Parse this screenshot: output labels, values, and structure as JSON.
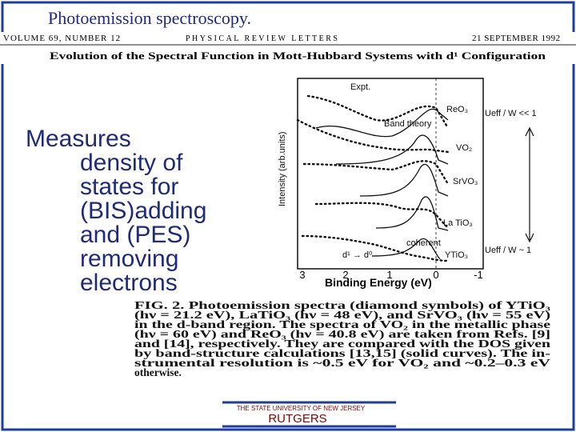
{
  "slide": {
    "title": "Photoemission spectroscopy.",
    "header": {
      "left": "VOLUME 69, NUMBER 12",
      "center": "PHYSICAL REVIEW LETTERS",
      "right": "21 SEPTEMBER 1992",
      "article_title": "Evolution of the Spectral Function in Mott-Hubbard Systems with d¹ Configuration"
    },
    "body_lines": [
      "Measures",
      "density of",
      "states for",
      "(BIS)adding",
      "and (PES)",
      "removing",
      "electrons"
    ],
    "figure": {
      "y_label": "Intensity (arb.units)",
      "x_label": "Binding Energy (eV)",
      "x_ticks": [
        3,
        2,
        1,
        0,
        -1
      ],
      "labels": {
        "expt": "Expt.",
        "band_theory": "Band theory",
        "reo3": "ReO₃",
        "vo2": "VO₂",
        "srvo3": "SrVO₃",
        "latio3": "La TiO₃",
        "ytio3": "YTiO₃",
        "coherent": "coherent",
        "transition": "d¹ → d⁰",
        "u_low": "Ueff / W << 1",
        "u_high": "Ueff / W ~ 1"
      },
      "caption_lines": [
        "FIG. 2.  Photoemission spectra (diamond symbols) of YTiO₃",
        "(hν = 21.2 eV), LaTiO₃ (hν = 48 eV), and SrVO₃ (hν = 55 eV)",
        "in the d-band region.  The spectra of VO₂ in the metallic phase",
        "(hν = 60 eV) and ReO₃ (hν = 40.8 eV) are taken from Refs. [9]",
        "and [14], respectively.  They are compared with the DOS given",
        "by band-structure calculations [13,15] (solid curves).  The in-",
        "strumental resolution is ~0.5 eV for VO₂ and ~0.2–0.3 eV",
        "otherwise."
      ]
    },
    "footer": {
      "university": "THE STATE UNIVERSITY OF NEW JERSEY",
      "name": "RUTGERS"
    }
  }
}
